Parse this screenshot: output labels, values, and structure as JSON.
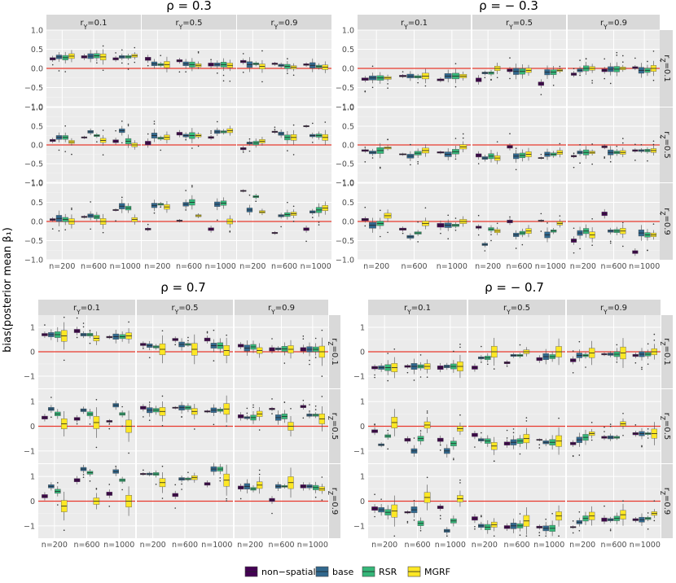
{
  "figure": {
    "ylabel": "bias(posterior mean β₁)",
    "legend": {
      "items": [
        {
          "label": "non−spatial",
          "color": "#440154"
        },
        {
          "label": "base",
          "color": "#31688e"
        },
        {
          "label": "RSR",
          "color": "#35b779"
        },
        {
          "label": "MGRF",
          "color": "#fde725"
        }
      ]
    }
  },
  "chart_data": [
    {
      "type": "boxplot",
      "title": "ρ = 0.3",
      "col_labels": [
        "r_Y=0.1",
        "r_Y=0.5",
        "r_Y=0.9"
      ],
      "row_labels": [
        "r_Z=0.1",
        "r_Z=0.5",
        "r_Z=0.9"
      ],
      "x_categories": [
        "n=200",
        "n=600",
        "n=1000"
      ],
      "ylim": [
        -1,
        1
      ],
      "yticks": [
        "1.0",
        "0.5",
        "0.0",
        "−0.5",
        "−1.0"
      ],
      "ytick_values": [
        1,
        0.5,
        0,
        -0.5,
        -1
      ],
      "median_bias": [
        [
          [
            [
              0.25,
              0.3,
              0.28,
              0.32
            ],
            [
              0.3,
              0.32,
              0.33,
              0.3
            ],
            [
              0.25,
              0.3,
              0.3,
              0.33
            ]
          ],
          [
            [
              0.25,
              0.12,
              0.1,
              0.1
            ],
            [
              0.2,
              0.12,
              0.1,
              0.08
            ],
            [
              0.1,
              0.1,
              0.1,
              0.08
            ]
          ],
          [
            [
              0.18,
              0.1,
              0.12,
              0.05
            ],
            [
              0.12,
              0.08,
              0.05,
              0.03
            ],
            [
              0.1,
              0.08,
              0.05,
              0.03
            ]
          ]
        ],
        [
          [
            [
              0.12,
              0.2,
              0.2,
              0.08
            ],
            [
              0.2,
              0.35,
              0.25,
              0.12
            ],
            [
              0.1,
              0.38,
              0.1,
              0.0
            ]
          ],
          [
            [
              0.05,
              0.25,
              0.18,
              0.2
            ],
            [
              0.3,
              0.25,
              0.25,
              0.25
            ],
            [
              0.2,
              0.35,
              0.35,
              0.38
            ]
          ],
          [
            [
              -0.1,
              0.05,
              0.05,
              0.1
            ],
            [
              0.35,
              0.3,
              0.2,
              0.2
            ],
            [
              0.5,
              0.25,
              0.25,
              0.2
            ]
          ]
        ],
        [
          [
            [
              0.05,
              0.08,
              0.05,
              0.0
            ],
            [
              0.12,
              0.15,
              0.12,
              0.0
            ],
            [
              0.3,
              0.4,
              0.35,
              0.05
            ]
          ],
          [
            [
              -0.2,
              0.42,
              0.45,
              0.38
            ],
            [
              0.02,
              0.45,
              0.5,
              0.15
            ],
            [
              -0.2,
              0.45,
              0.48,
              0.0
            ]
          ],
          [
            [
              0.8,
              0.3,
              0.65,
              0.25
            ],
            [
              -0.3,
              0.15,
              0.18,
              0.2
            ],
            [
              -0.2,
              0.25,
              0.3,
              0.35
            ]
          ]
        ]
      ]
    },
    {
      "type": "boxplot",
      "title": "ρ = − 0.3",
      "col_labels": [
        "r_Y=0.1",
        "r_Y=0.5",
        "r_Y=0.9"
      ],
      "row_labels": [
        "r_Z=0.1",
        "r_Z=0.5",
        "r_Z=0.9"
      ],
      "x_categories": [
        "n=200",
        "n=600",
        "n=1000"
      ],
      "ylim": [
        -1,
        1
      ],
      "yticks": [
        "1.0",
        "0.5",
        "0.0",
        "−0.5",
        "−1.0"
      ],
      "ytick_values": [
        1,
        0.5,
        0,
        -0.5,
        -1
      ],
      "median_bias": [
        [
          [
            [
              -0.28,
              -0.25,
              -0.25,
              -0.25
            ],
            [
              -0.2,
              -0.2,
              -0.22,
              -0.2
            ],
            [
              -0.3,
              -0.2,
              -0.2,
              -0.2
            ]
          ],
          [
            [
              -0.3,
              -0.12,
              -0.12,
              0.0
            ],
            [
              -0.05,
              -0.08,
              -0.08,
              -0.05
            ],
            [
              -0.4,
              -0.1,
              -0.1,
              -0.05
            ]
          ],
          [
            [
              -0.15,
              -0.05,
              0.0,
              0.0
            ],
            [
              -0.05,
              -0.02,
              -0.02,
              0.0
            ],
            [
              0.02,
              -0.05,
              -0.05,
              0.0
            ]
          ]
        ],
        [
          [
            [
              -0.15,
              -0.2,
              -0.15,
              -0.08
            ],
            [
              -0.25,
              -0.3,
              -0.22,
              -0.15
            ],
            [
              -0.2,
              -0.25,
              -0.18,
              -0.05
            ]
          ],
          [
            [
              -0.28,
              -0.35,
              -0.3,
              -0.35
            ],
            [
              -0.05,
              -0.3,
              -0.28,
              -0.25
            ],
            [
              -0.35,
              -0.25,
              -0.25,
              -0.2
            ]
          ],
          [
            [
              -0.3,
              -0.2,
              -0.2,
              -0.2
            ],
            [
              -0.05,
              -0.2,
              -0.2,
              -0.2
            ],
            [
              -0.15,
              -0.15,
              -0.15,
              -0.15
            ]
          ]
        ],
        [
          [
            [
              0.05,
              -0.1,
              -0.05,
              0.15
            ],
            [
              -0.2,
              -0.4,
              -0.3,
              -0.05
            ],
            [
              -0.1,
              -0.1,
              -0.1,
              0.0
            ]
          ],
          [
            [
              -0.15,
              -0.6,
              -0.2,
              -0.25
            ],
            [
              0.0,
              -0.35,
              -0.3,
              -0.25
            ],
            [
              0.02,
              -0.35,
              -0.25,
              -0.05
            ]
          ],
          [
            [
              -0.5,
              -0.3,
              -0.25,
              -0.35
            ],
            [
              0.2,
              -0.25,
              -0.25,
              -0.25
            ],
            [
              -0.8,
              -0.3,
              -0.35,
              -0.35
            ]
          ]
        ]
      ]
    },
    {
      "type": "boxplot",
      "title": "ρ = 0.7",
      "col_labels": [
        "r_Y=0.1",
        "r_Y=0.5",
        "r_Y=0.9"
      ],
      "row_labels": [
        "r_Z=0.1",
        "r_Z=0.5",
        "r_Z=0.9"
      ],
      "x_categories": [
        "n=200",
        "n=600",
        "n=1000"
      ],
      "ylim": [
        -1.5,
        1.5
      ],
      "yticks": [
        "1",
        "0",
        "−1"
      ],
      "ytick_values": [
        1,
        0,
        -1
      ],
      "median_bias": [
        [
          [
            [
              0.7,
              0.7,
              0.7,
              0.65
            ],
            [
              0.85,
              0.7,
              0.7,
              0.55
            ],
            [
              0.6,
              0.62,
              0.62,
              0.65
            ]
          ],
          [
            [
              0.3,
              0.25,
              0.2,
              0.1
            ],
            [
              0.5,
              0.3,
              0.3,
              0.1
            ],
            [
              0.5,
              0.25,
              0.25,
              0.05
            ]
          ],
          [
            [
              0.25,
              0.15,
              0.2,
              0.05
            ],
            [
              0.1,
              0.12,
              0.12,
              0.1
            ],
            [
              0.1,
              0.1,
              0.1,
              0.0
            ]
          ]
        ],
        [
          [
            [
              0.35,
              0.7,
              0.5,
              0.1
            ],
            [
              0.3,
              0.65,
              0.5,
              0.15
            ],
            [
              0.2,
              0.85,
              0.5,
              0.0
            ]
          ],
          [
            [
              0.75,
              0.65,
              0.65,
              0.6
            ],
            [
              0.75,
              0.75,
              0.75,
              0.6
            ],
            [
              0.6,
              0.65,
              0.65,
              0.7
            ]
          ],
          [
            [
              0.4,
              0.35,
              0.35,
              0.5
            ],
            [
              0.7,
              0.35,
              0.4,
              0.0
            ],
            [
              0.8,
              0.45,
              0.45,
              0.3
            ]
          ]
        ],
        [
          [
            [
              0.2,
              0.6,
              0.4,
              -0.2
            ],
            [
              0.85,
              1.3,
              1.15,
              0.0
            ],
            [
              0.3,
              1.2,
              0.85,
              0.0
            ]
          ],
          [
            [
              1.1,
              1.1,
              1.1,
              0.75
            ],
            [
              0.25,
              0.9,
              0.9,
              0.95
            ],
            [
              0.7,
              1.3,
              1.3,
              0.85
            ]
          ],
          [
            [
              0.55,
              0.6,
              0.5,
              0.65
            ],
            [
              0.05,
              0.6,
              0.6,
              0.75
            ],
            [
              0.6,
              0.6,
              0.55,
              0.5
            ]
          ]
        ]
      ]
    },
    {
      "type": "boxplot",
      "title": "ρ = − 0.7",
      "col_labels": [
        "r_Y=0.1",
        "r_Y=0.5",
        "r_Y=0.9"
      ],
      "row_labels": [
        "r_Z=0.1",
        "r_Z=0.5",
        "r_Z=0.9"
      ],
      "x_categories": [
        "n=200",
        "n=600",
        "n=1000"
      ],
      "ylim": [
        -1.5,
        1.5
      ],
      "yticks": [
        "1",
        "0",
        "−1"
      ],
      "ytick_values": [
        1,
        0,
        -1
      ],
      "median_bias": [
        [
          [
            [
              -0.65,
              -0.65,
              -0.65,
              -0.65
            ],
            [
              -0.6,
              -0.6,
              -0.6,
              -0.6
            ],
            [
              -0.65,
              -0.6,
              -0.6,
              -0.6
            ]
          ],
          [
            [
              -0.65,
              -0.25,
              -0.25,
              0.0
            ],
            [
              -0.45,
              -0.15,
              -0.15,
              0.0
            ],
            [
              -0.3,
              -0.2,
              -0.2,
              0.0
            ]
          ],
          [
            [
              -0.35,
              -0.15,
              -0.15,
              -0.05
            ],
            [
              -0.1,
              -0.1,
              -0.1,
              -0.05
            ],
            [
              -0.15,
              -0.1,
              -0.1,
              0.0
            ]
          ]
        ],
        [
          [
            [
              -0.2,
              -0.75,
              -0.4,
              0.15
            ],
            [
              -0.55,
              -1.0,
              -0.5,
              0.05
            ],
            [
              -0.55,
              -1.0,
              -0.7,
              -0.1
            ]
          ],
          [
            [
              -0.35,
              -0.55,
              -0.6,
              -0.8
            ],
            [
              -0.7,
              -0.65,
              -0.6,
              -0.5
            ],
            [
              -0.55,
              -0.65,
              -0.65,
              -0.6
            ]
          ],
          [
            [
              -0.7,
              -0.55,
              -0.45,
              -0.3
            ],
            [
              -0.45,
              -0.45,
              -0.45,
              0.1
            ],
            [
              -0.3,
              -0.3,
              -0.3,
              -0.3
            ]
          ]
        ],
        [
          [
            [
              -0.3,
              -0.35,
              -0.45,
              -0.4
            ],
            [
              -0.45,
              -0.35,
              -0.9,
              0.15
            ],
            [
              -0.25,
              -1.2,
              -0.8,
              0.1
            ]
          ],
          [
            [
              -0.7,
              -1.0,
              -1.05,
              -0.95
            ],
            [
              -1.05,
              -1.0,
              -1.0,
              -0.8
            ],
            [
              -1.05,
              -1.1,
              -1.1,
              -0.6
            ]
          ],
          [
            [
              -1.05,
              -0.85,
              -0.7,
              -0.6
            ],
            [
              -0.75,
              -0.75,
              -0.7,
              -0.55
            ],
            [
              -0.75,
              -0.75,
              -0.7,
              -0.5
            ]
          ]
        ]
      ]
    }
  ]
}
